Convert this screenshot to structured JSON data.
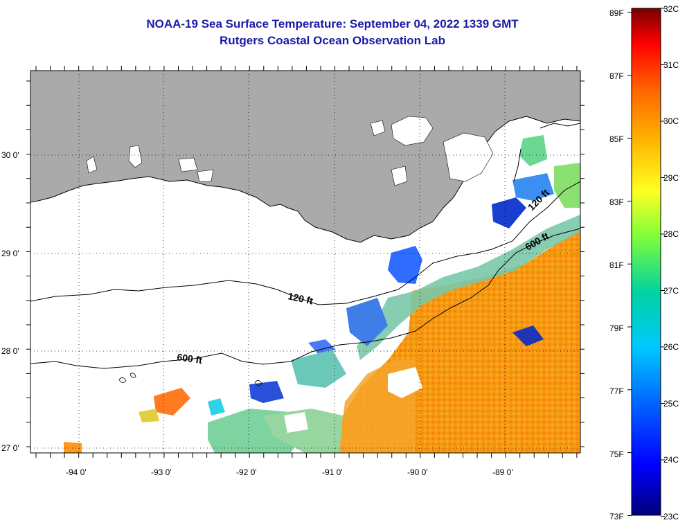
{
  "title": {
    "line1": "NOAA-19 Sea Surface Temperature:  September 04, 2022 1339 GMT",
    "line2": "Rutgers Coastal Ocean Observation Lab"
  },
  "map": {
    "region": "Northern Gulf of Mexico / Louisiana coast",
    "lat_labels": [
      "30 0'",
      "29 0'",
      "28 0'",
      "27 0'"
    ],
    "lon_labels": [
      "-94 0'",
      "-93 0'",
      "-92 0'",
      "-91 0'",
      "-90 0'",
      "-89 0'"
    ],
    "land_color": "#aaaaaa",
    "no_data_color": "#ffffff",
    "contours": [
      {
        "label": "120 ft"
      },
      {
        "label": "600 ft"
      },
      {
        "label": "120 ft"
      },
      {
        "label": "600 ft"
      }
    ]
  },
  "colorbar": {
    "fahrenheit": [
      "89F",
      "87F",
      "85F",
      "83F",
      "81F",
      "79F",
      "77F",
      "75F",
      "73F"
    ],
    "celsius": [
      "32C",
      "31C",
      "30C",
      "29C",
      "28C",
      "27C",
      "26C",
      "25C",
      "24C",
      "23C"
    ],
    "colors": [
      "#8b0000",
      "#ff0000",
      "#ff8c00",
      "#ffd700",
      "#ffff33",
      "#7fff00",
      "#00c8a0",
      "#00ffff",
      "#0096ff",
      "#0000ff",
      "#000080"
    ]
  }
}
